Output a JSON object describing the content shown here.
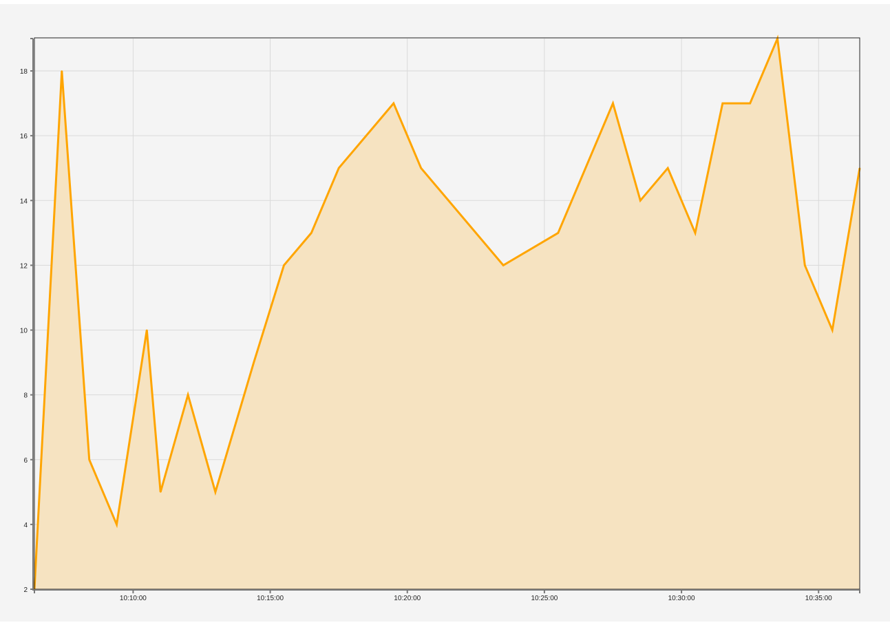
{
  "chart_data": {
    "type": "area",
    "title": "",
    "xlabel": "",
    "ylabel": "",
    "x_ticks": [
      "10:10:00",
      "10:15:00",
      "10:20:00",
      "10:25:00",
      "10:30:00",
      "10:35:00"
    ],
    "y_ticks": [
      "2",
      "4",
      "6",
      "8",
      "10",
      "12",
      "14",
      "16",
      "18"
    ],
    "xlim": [
      "10:06:24",
      "10:36:30"
    ],
    "ylim": [
      2,
      19
    ],
    "grid": true,
    "colors": {
      "line": "#ffa500",
      "fill": "#f6e3c1",
      "background": "#f4f4f4",
      "grid": "#d9d9d9"
    },
    "series": [
      {
        "x": [
          "10:06:24",
          "10:07:24",
          "10:08:24",
          "10:09:24",
          "10:10:30",
          "10:11:00",
          "10:12:00",
          "10:13:00",
          "10:14:24",
          "10:15:30",
          "10:16:30",
          "10:17:30",
          "10:19:30",
          "10:20:30",
          "10:23:30",
          "10:25:30",
          "10:27:30",
          "10:28:30",
          "10:29:30",
          "10:30:30",
          "10:31:30",
          "10:32:30",
          "10:33:30",
          "10:34:30",
          "10:35:30",
          "10:36:30"
        ],
        "values": [
          2,
          18,
          6,
          4,
          10,
          5,
          8,
          5,
          9,
          12,
          13,
          15,
          17,
          15,
          12,
          13,
          17,
          14,
          15,
          13,
          17,
          17,
          19,
          12,
          10,
          15
        ]
      }
    ]
  }
}
